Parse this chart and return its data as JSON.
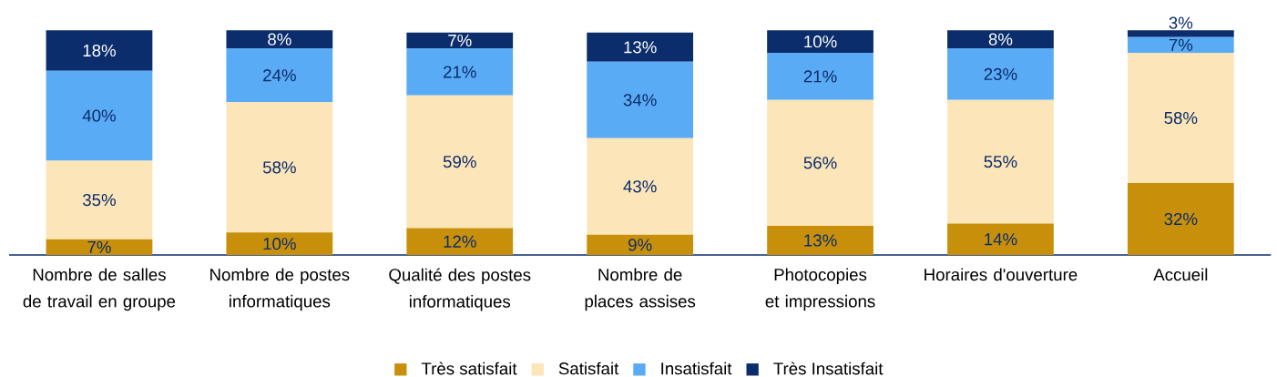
{
  "chart_data": {
    "type": "bar",
    "stacked": true,
    "legend": "bottom",
    "categories": [
      "Nombre de salles de travail en groupe",
      "Nombre de postes informatiques",
      "Qualité des postes informatiques",
      "Nombre de places assises",
      "Photocopies et impressions",
      "Horaires d'ouverture",
      "Accueil"
    ],
    "series": [
      {
        "name": "Très satisfait",
        "color": "#c8900a",
        "values": [
          7,
          10,
          12,
          9,
          13,
          14,
          32
        ],
        "value_labels": [
          "7%",
          "10%",
          "12%",
          "9%",
          "13%",
          "14%",
          "32%"
        ]
      },
      {
        "name": "Satisfait",
        "color": "#fce5b8",
        "values": [
          35,
          58,
          59,
          43,
          56,
          55,
          58
        ],
        "value_labels": [
          "35%",
          "58%",
          "59%",
          "43%",
          "56%",
          "55%",
          "58%"
        ]
      },
      {
        "name": "Insatisfait",
        "color": "#5aabf5",
        "values": [
          40,
          24,
          21,
          34,
          21,
          23,
          7
        ],
        "value_labels": [
          "40%",
          "24%",
          "21%",
          "34%",
          "21%",
          "23%",
          "7%"
        ]
      },
      {
        "name": "Très Insatisfait",
        "color": "#0b2d6b",
        "values": [
          18,
          8,
          7,
          13,
          10,
          8,
          3
        ],
        "value_labels": [
          "18%",
          "8%",
          "7%",
          "13%",
          "10%",
          "8%",
          "3%"
        ]
      }
    ]
  }
}
